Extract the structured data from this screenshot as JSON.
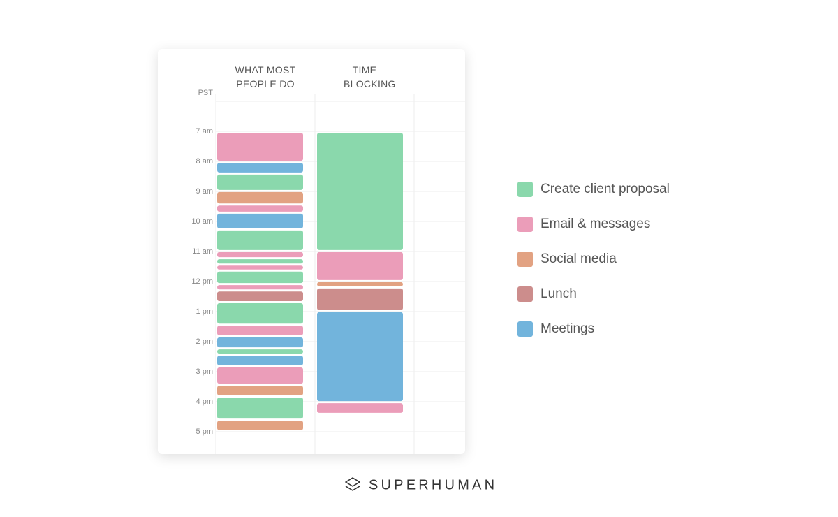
{
  "columns": [
    {
      "title": "WHAT MOST PEOPLE DO"
    },
    {
      "title": "TIME BLOCKING"
    }
  ],
  "time_labels": [
    "PST",
    "7 am",
    "8 am",
    "9 am",
    "10 am",
    "11 am",
    "12 pm",
    "1 pm",
    "2 pm",
    "3 pm",
    "4 pm",
    "5 pm"
  ],
  "activities": [
    {
      "label": "Create client proposal",
      "color": "#8ad8ac",
      "blocks": [
        [
          [
            8.44,
            9.02
          ],
          [
            10.3,
            11.02
          ],
          [
            11.26,
            11.47
          ],
          [
            11.67,
            12.12
          ],
          [
            12.72,
            13.47
          ],
          [
            14.26,
            14.47
          ],
          [
            15.86,
            16.63
          ]
        ],
        [
          [
            7.05,
            11.02
          ]
        ]
      ]
    },
    {
      "label": "Email & messages",
      "color": "#eb9db9",
      "blocks": [
        [
          [
            7.05,
            8.05
          ],
          [
            9.47,
            9.74
          ],
          [
            11.02,
            11.26
          ],
          [
            11.47,
            11.67
          ],
          [
            12.12,
            12.33
          ],
          [
            13.47,
            13.86
          ],
          [
            14.86,
            15.47
          ]
        ],
        [
          [
            11.02,
            12.02
          ],
          [
            16.05,
            16.44
          ]
        ]
      ]
    },
    {
      "label": "Social media",
      "color": "#e2a282",
      "blocks": [
        [
          [
            9.02,
            9.47
          ],
          [
            15.47,
            15.86
          ],
          [
            16.63,
            17.02
          ]
        ],
        [
          [
            12.02,
            12.23
          ]
        ]
      ]
    },
    {
      "label": "Lunch",
      "color": "#cc8d8c",
      "blocks": [
        [
          [
            12.33,
            12.72
          ]
        ],
        [
          [
            12.23,
            13.02
          ]
        ]
      ]
    },
    {
      "label": "Meetings",
      "color": "#72b4dc",
      "blocks": [
        [
          [
            8.05,
            8.44
          ],
          [
            9.74,
            10.3
          ],
          [
            13.86,
            14.26
          ],
          [
            14.47,
            14.86
          ]
        ],
        [
          [
            13.02,
            16.05
          ]
        ]
      ]
    }
  ],
  "brand": "SUPERHUMAN"
}
